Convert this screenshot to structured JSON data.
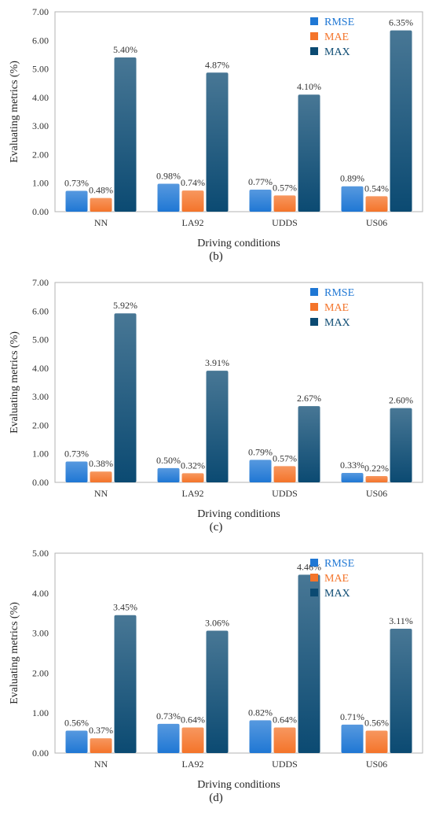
{
  "colors": {
    "RMSE": "#1f77d4",
    "MAE": "#f4742a",
    "MAX": "#0b4a72"
  },
  "chart_data": [
    {
      "type": "bar",
      "subtitle": "(b)",
      "categories": [
        "NN",
        "LA92",
        "UDDS",
        "US06"
      ],
      "xlabel": "Driving conditions",
      "ylabel": "Evaluating metrics (%)",
      "ylim": [
        0,
        7
      ],
      "yticks": [
        "0.00",
        "1.00",
        "2.00",
        "3.00",
        "4.00",
        "5.00",
        "6.00",
        "7.00"
      ],
      "legend_position": "top-right",
      "series": [
        {
          "name": "RMSE",
          "values": [
            0.73,
            0.98,
            0.77,
            0.89
          ],
          "labels": [
            "0.73%",
            "0.98%",
            "0.77%",
            "0.89%"
          ]
        },
        {
          "name": "MAE",
          "values": [
            0.48,
            0.74,
            0.57,
            0.54
          ],
          "labels": [
            "0.48%",
            "0.74%",
            "0.57%",
            "0.54%"
          ]
        },
        {
          "name": "MAX",
          "values": [
            5.4,
            4.87,
            4.1,
            6.35
          ],
          "labels": [
            "5.40%",
            "4.87%",
            "4.10%",
            "6.35%"
          ]
        }
      ]
    },
    {
      "type": "bar",
      "subtitle": "(c)",
      "categories": [
        "NN",
        "LA92",
        "UDDS",
        "US06"
      ],
      "xlabel": "Driving conditions",
      "ylabel": "Evaluating metrics (%)",
      "ylim": [
        0,
        7
      ],
      "yticks": [
        "0.00",
        "1.00",
        "2.00",
        "3.00",
        "4.00",
        "5.00",
        "6.00",
        "7.00"
      ],
      "legend_position": "top-right",
      "series": [
        {
          "name": "RMSE",
          "values": [
            0.73,
            0.5,
            0.79,
            0.33
          ],
          "labels": [
            "0.73%",
            "0.50%",
            "0.79%",
            "0.33%"
          ]
        },
        {
          "name": "MAE",
          "values": [
            0.38,
            0.32,
            0.57,
            0.22
          ],
          "labels": [
            "0.38%",
            "0.32%",
            "0.57%",
            "0.22%"
          ]
        },
        {
          "name": "MAX",
          "values": [
            5.92,
            3.91,
            2.67,
            2.6
          ],
          "labels": [
            "5.92%",
            "3.91%",
            "2.67%",
            "2.60%"
          ]
        }
      ]
    },
    {
      "type": "bar",
      "subtitle": "(d)",
      "categories": [
        "NN",
        "LA92",
        "UDDS",
        "US06"
      ],
      "xlabel": "Driving conditions",
      "ylabel": "Evaluating metrics (%)",
      "ylim": [
        0,
        5
      ],
      "yticks": [
        "0.00",
        "1.00",
        "2.00",
        "3.00",
        "4.00",
        "5.00"
      ],
      "legend_position": "top-right",
      "series": [
        {
          "name": "RMSE",
          "values": [
            0.56,
            0.73,
            0.82,
            0.71
          ],
          "labels": [
            "0.56%",
            "0.73%",
            "0.82%",
            "0.71%"
          ]
        },
        {
          "name": "MAE",
          "values": [
            0.37,
            0.64,
            0.64,
            0.56
          ],
          "labels": [
            "0.37%",
            "0.64%",
            "0.64%",
            "0.56%"
          ]
        },
        {
          "name": "MAX",
          "values": [
            3.45,
            3.06,
            4.46,
            3.11
          ],
          "labels": [
            "3.45%",
            "3.06%",
            "4.46%",
            "3.11%"
          ]
        }
      ]
    }
  ]
}
